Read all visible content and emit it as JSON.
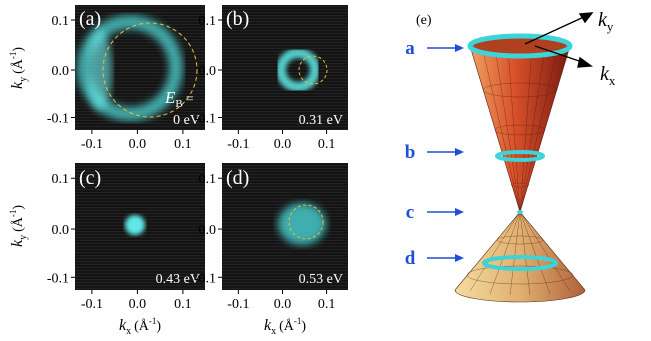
{
  "panels": [
    {
      "label": "(a)",
      "binding_symbol": "E",
      "binding_subscript": "B",
      "binding_suffix": "=",
      "energy": "0 eV"
    },
    {
      "label": "(b)",
      "energy": "0.31 eV"
    },
    {
      "label": "(c)",
      "energy": "0.43 eV"
    },
    {
      "label": "(d)",
      "energy": "0.53 eV"
    }
  ],
  "axis_ticks": {
    "x": [
      "-0.1",
      "0.0",
      "0.1"
    ],
    "y": [
      "0.1",
      "0.0",
      "-0.1"
    ]
  },
  "axis_label": {
    "symbol": "k",
    "x_sub": "x",
    "y_sub": "y",
    "unit_open": "(Å",
    "unit_exp": "-1",
    "unit_close": ")"
  },
  "cone": {
    "label": "(e)",
    "levels": [
      "a",
      "b",
      "c",
      "d"
    ],
    "ky": {
      "symbol": "k",
      "sub": "y"
    },
    "kx": {
      "symbol": "k",
      "sub": "x"
    }
  }
}
